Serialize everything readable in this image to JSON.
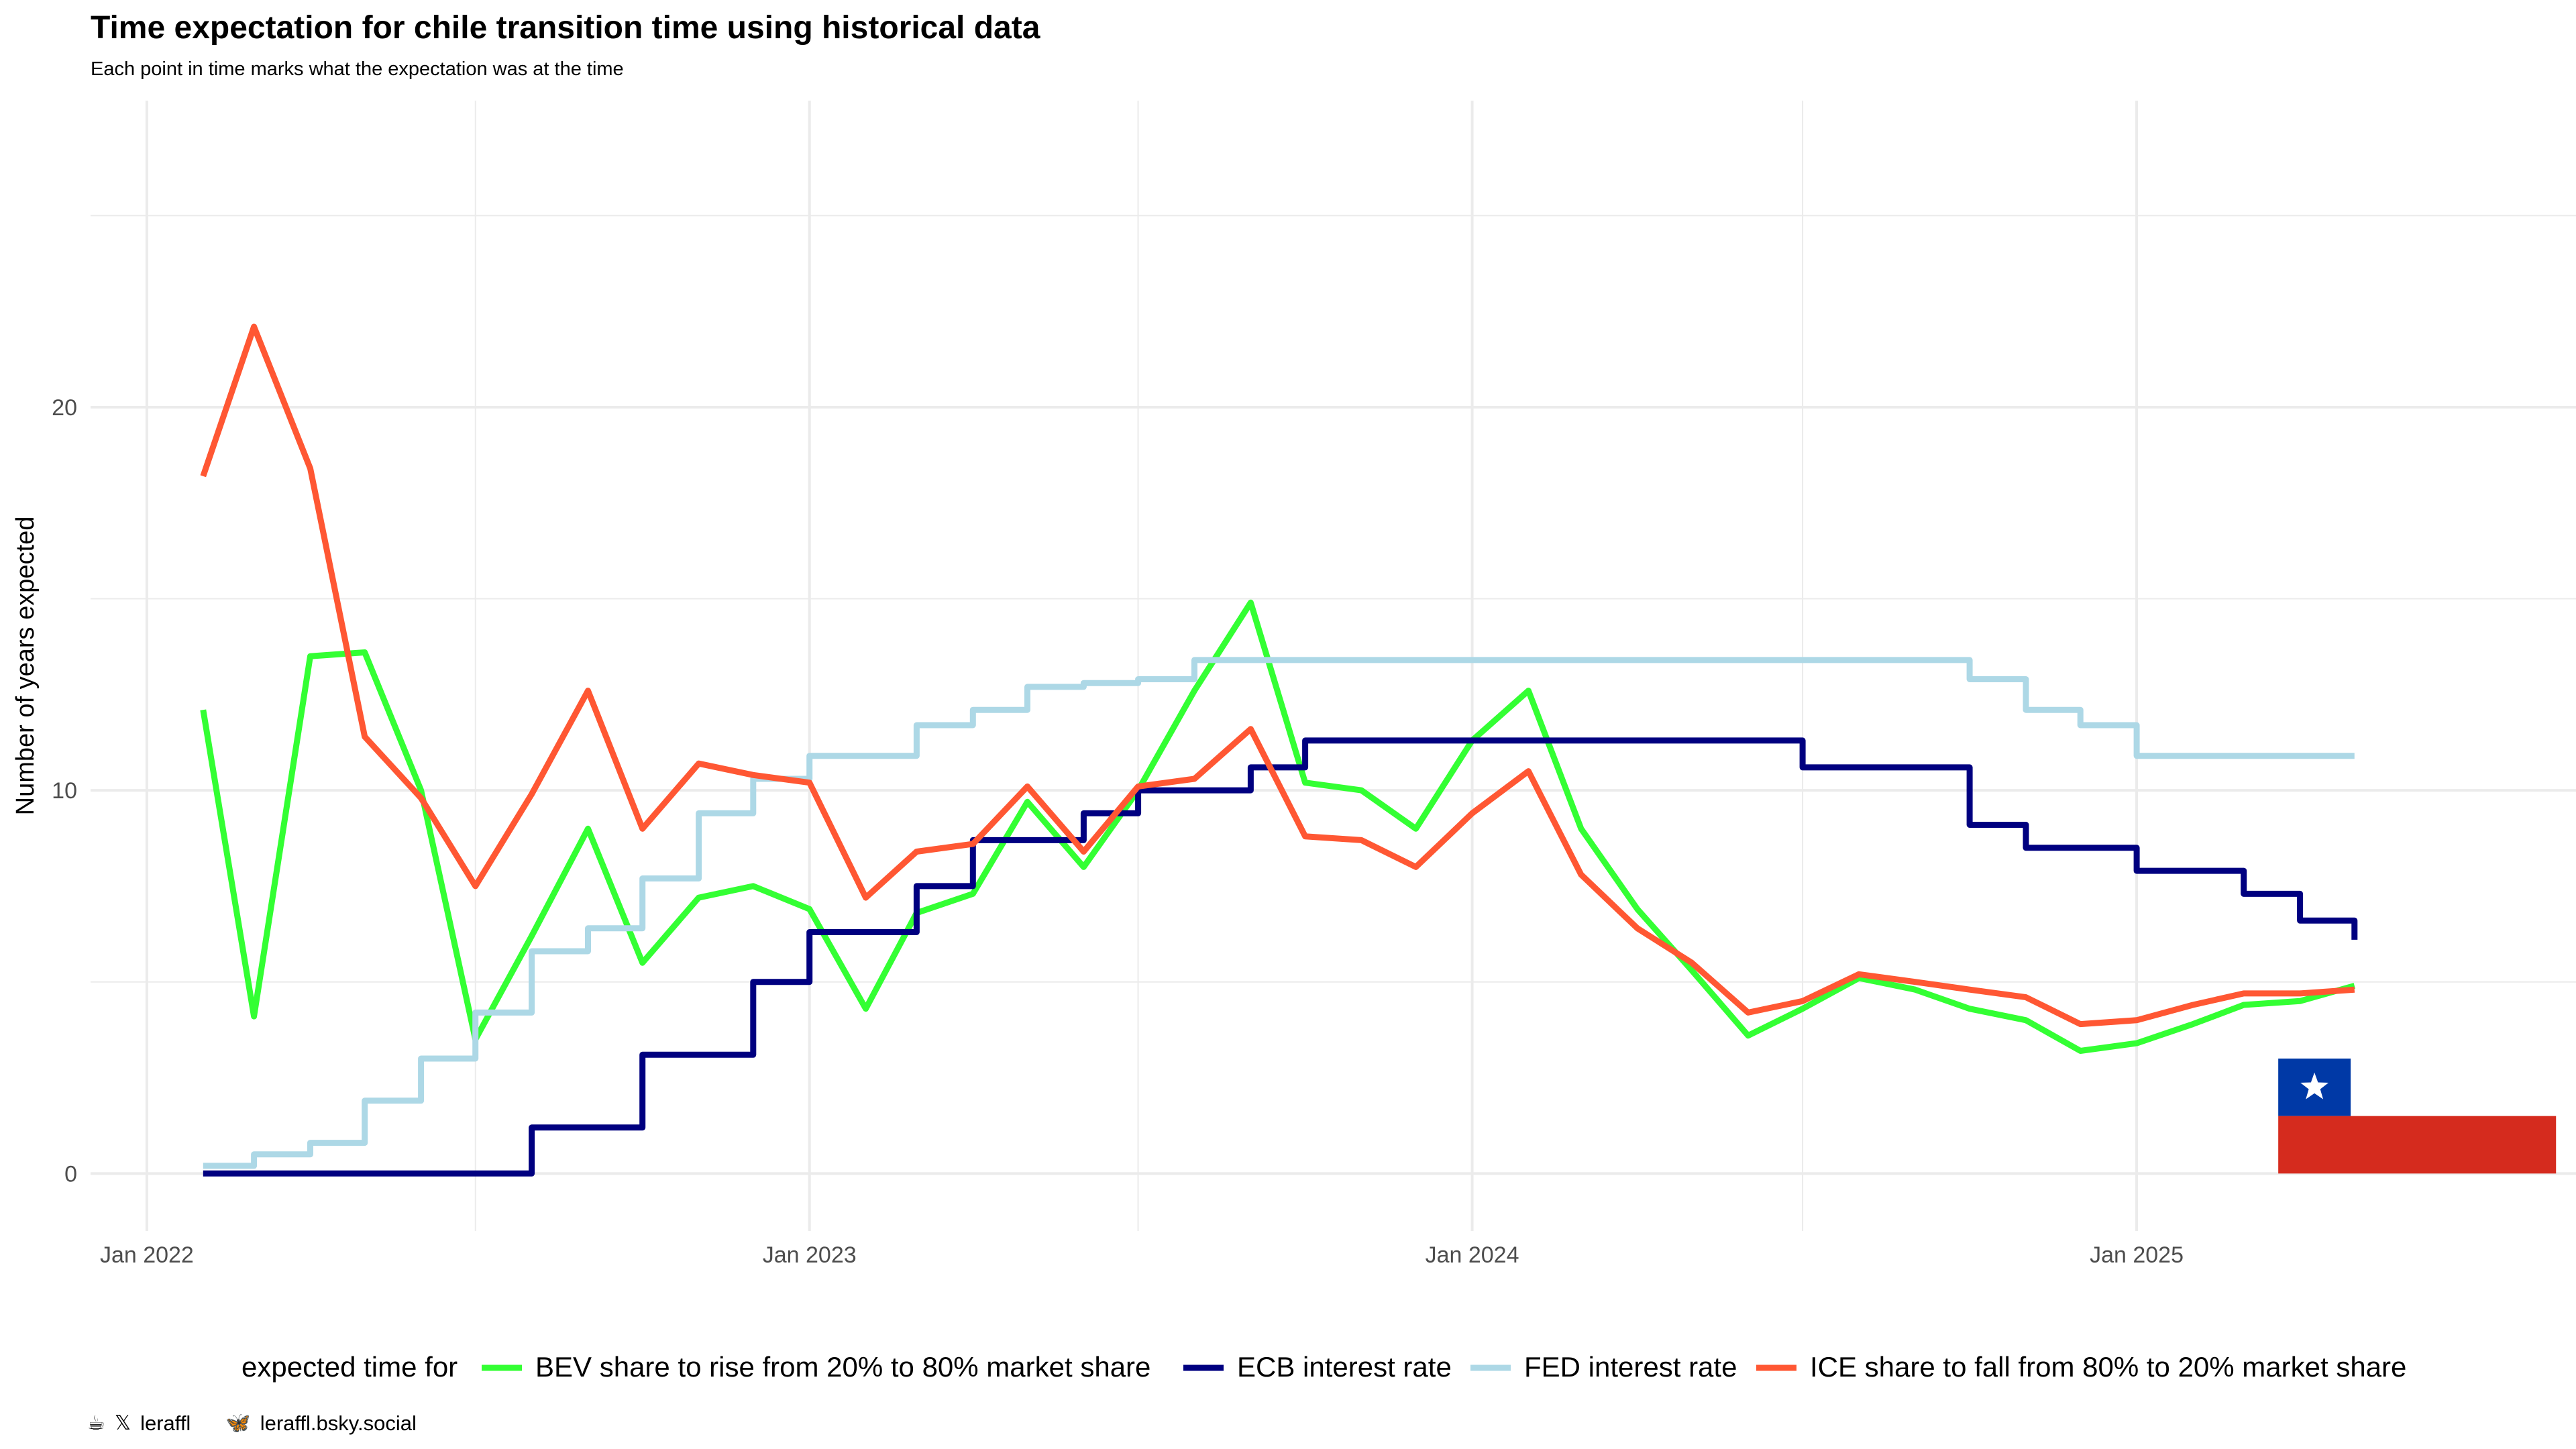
{
  "chart_data": {
    "type": "line",
    "title": "Time expectation for chile transition time using historical data",
    "subtitle": "Each point in time marks what the expectation was at the time",
    "ylabel": "Number of years expected",
    "xlabel": "",
    "x_ticks": [
      "Jan 2022",
      "Jan 2023",
      "Jan 2024",
      "Jan 2025"
    ],
    "y_ticks": [
      0,
      10,
      20
    ],
    "ylim": [
      -1.5,
      28
    ],
    "xlim": [
      "2021-12-01",
      "2025-08-31"
    ],
    "grid": true,
    "legend": {
      "title": "expected time for",
      "placement": "bottom"
    },
    "series": [
      {
        "name": "BEV share to rise from 20% to 80% market share",
        "color": "#33ff33",
        "step": false,
        "points": [
          [
            "2022-02-01",
            12.1
          ],
          [
            "2022-03-01",
            4.1
          ],
          [
            "2022-04-01",
            13.5
          ],
          [
            "2022-05-01",
            13.6
          ],
          [
            "2022-06-01",
            10.0
          ],
          [
            "2022-07-01",
            3.5
          ],
          [
            "2022-08-01",
            6.2
          ],
          [
            "2022-09-01",
            9.0
          ],
          [
            "2022-10-01",
            5.5
          ],
          [
            "2022-11-01",
            7.2
          ],
          [
            "2022-12-01",
            7.5
          ],
          [
            "2023-01-01",
            6.9
          ],
          [
            "2023-02-01",
            4.3
          ],
          [
            "2023-03-01",
            6.8
          ],
          [
            "2023-04-01",
            7.3
          ],
          [
            "2023-05-01",
            9.7
          ],
          [
            "2023-06-01",
            8.0
          ],
          [
            "2023-07-01",
            10.0
          ],
          [
            "2023-08-01",
            12.6
          ],
          [
            "2023-09-01",
            14.9
          ],
          [
            "2023-10-01",
            10.2
          ],
          [
            "2023-11-01",
            10.0
          ],
          [
            "2023-12-01",
            9.0
          ],
          [
            "2024-01-01",
            11.3
          ],
          [
            "2024-02-01",
            12.6
          ],
          [
            "2024-03-01",
            9.0
          ],
          [
            "2024-04-01",
            6.9
          ],
          [
            "2024-05-01",
            5.3
          ],
          [
            "2024-06-01",
            3.6
          ],
          [
            "2024-07-01",
            4.3
          ],
          [
            "2024-08-01",
            5.1
          ],
          [
            "2024-09-01",
            4.8
          ],
          [
            "2024-10-01",
            4.3
          ],
          [
            "2024-11-01",
            4.0
          ],
          [
            "2024-12-01",
            3.2
          ],
          [
            "2025-01-01",
            3.4
          ],
          [
            "2025-02-01",
            3.9
          ],
          [
            "2025-03-01",
            4.4
          ],
          [
            "2025-04-01",
            4.5
          ],
          [
            "2025-05-01",
            4.9
          ]
        ]
      },
      {
        "name": "ECB interest rate",
        "color": "#000080",
        "step": true,
        "points": [
          [
            "2022-02-01",
            0.0
          ],
          [
            "2022-03-01",
            0.0
          ],
          [
            "2022-04-01",
            0.0
          ],
          [
            "2022-05-01",
            0.0
          ],
          [
            "2022-06-01",
            0.0
          ],
          [
            "2022-07-01",
            0.0
          ],
          [
            "2022-08-01",
            1.2
          ],
          [
            "2022-09-01",
            1.2
          ],
          [
            "2022-10-01",
            3.1
          ],
          [
            "2022-11-01",
            3.1
          ],
          [
            "2022-12-01",
            5.0
          ],
          [
            "2023-01-01",
            6.3
          ],
          [
            "2023-02-01",
            6.3
          ],
          [
            "2023-03-01",
            7.5
          ],
          [
            "2023-04-01",
            8.7
          ],
          [
            "2023-05-01",
            8.7
          ],
          [
            "2023-06-01",
            9.4
          ],
          [
            "2023-07-01",
            10.0
          ],
          [
            "2023-08-01",
            10.0
          ],
          [
            "2023-09-01",
            10.6
          ],
          [
            "2023-10-01",
            11.3
          ],
          [
            "2023-11-01",
            11.3
          ],
          [
            "2023-12-01",
            11.3
          ],
          [
            "2024-01-01",
            11.3
          ],
          [
            "2024-02-01",
            11.3
          ],
          [
            "2024-03-01",
            11.3
          ],
          [
            "2024-04-01",
            11.3
          ],
          [
            "2024-05-01",
            11.3
          ],
          [
            "2024-06-01",
            11.3
          ],
          [
            "2024-07-01",
            10.6
          ],
          [
            "2024-08-01",
            10.6
          ],
          [
            "2024-09-01",
            10.6
          ],
          [
            "2024-10-01",
            9.1
          ],
          [
            "2024-11-01",
            8.5
          ],
          [
            "2024-12-01",
            8.5
          ],
          [
            "2025-01-01",
            7.9
          ],
          [
            "2025-02-01",
            7.9
          ],
          [
            "2025-03-01",
            7.3
          ],
          [
            "2025-04-01",
            6.6
          ],
          [
            "2025-05-01",
            6.1
          ]
        ]
      },
      {
        "name": "FED interest rate",
        "color": "#add8e6",
        "step": true,
        "points": [
          [
            "2022-02-01",
            0.2
          ],
          [
            "2022-03-01",
            0.5
          ],
          [
            "2022-04-01",
            0.8
          ],
          [
            "2022-05-01",
            1.9
          ],
          [
            "2022-06-01",
            3.0
          ],
          [
            "2022-07-01",
            4.2
          ],
          [
            "2022-08-01",
            5.8
          ],
          [
            "2022-09-01",
            6.4
          ],
          [
            "2022-10-01",
            7.7
          ],
          [
            "2022-11-01",
            9.4
          ],
          [
            "2022-12-01",
            10.3
          ],
          [
            "2023-01-01",
            10.9
          ],
          [
            "2023-02-01",
            10.9
          ],
          [
            "2023-03-01",
            11.7
          ],
          [
            "2023-04-01",
            12.1
          ],
          [
            "2023-05-01",
            12.7
          ],
          [
            "2023-06-01",
            12.8
          ],
          [
            "2023-07-01",
            12.9
          ],
          [
            "2023-08-01",
            13.4
          ],
          [
            "2023-09-01",
            13.4
          ],
          [
            "2023-10-01",
            13.4
          ],
          [
            "2023-11-01",
            13.4
          ],
          [
            "2023-12-01",
            13.4
          ],
          [
            "2024-01-01",
            13.4
          ],
          [
            "2024-02-01",
            13.4
          ],
          [
            "2024-03-01",
            13.4
          ],
          [
            "2024-04-01",
            13.4
          ],
          [
            "2024-05-01",
            13.4
          ],
          [
            "2024-06-01",
            13.4
          ],
          [
            "2024-07-01",
            13.4
          ],
          [
            "2024-08-01",
            13.4
          ],
          [
            "2024-09-01",
            13.4
          ],
          [
            "2024-10-01",
            12.9
          ],
          [
            "2024-11-01",
            12.1
          ],
          [
            "2024-12-01",
            11.7
          ],
          [
            "2025-01-01",
            10.9
          ],
          [
            "2025-02-01",
            10.9
          ],
          [
            "2025-03-01",
            10.9
          ],
          [
            "2025-04-01",
            10.9
          ],
          [
            "2025-05-01",
            10.9
          ]
        ]
      },
      {
        "name": "ICE share to fall from 80% to 20% market share",
        "color": "#ff5733",
        "step": false,
        "points": [
          [
            "2022-02-01",
            18.2
          ],
          [
            "2022-03-01",
            22.1
          ],
          [
            "2022-04-01",
            18.4
          ],
          [
            "2022-05-01",
            11.4
          ],
          [
            "2022-06-01",
            9.8
          ],
          [
            "2022-07-01",
            7.5
          ],
          [
            "2022-08-01",
            9.9
          ],
          [
            "2022-09-01",
            12.6
          ],
          [
            "2022-10-01",
            9.0
          ],
          [
            "2022-11-01",
            10.7
          ],
          [
            "2022-12-01",
            10.4
          ],
          [
            "2023-01-01",
            10.2
          ],
          [
            "2023-02-01",
            7.2
          ],
          [
            "2023-03-01",
            8.4
          ],
          [
            "2023-04-01",
            8.6
          ],
          [
            "2023-05-01",
            10.1
          ],
          [
            "2023-06-01",
            8.4
          ],
          [
            "2023-07-01",
            10.1
          ],
          [
            "2023-08-01",
            10.3
          ],
          [
            "2023-09-01",
            11.6
          ],
          [
            "2023-10-01",
            8.8
          ],
          [
            "2023-11-01",
            8.7
          ],
          [
            "2023-12-01",
            8.0
          ],
          [
            "2024-01-01",
            9.4
          ],
          [
            "2024-02-01",
            10.5
          ],
          [
            "2024-03-01",
            7.8
          ],
          [
            "2024-04-01",
            6.4
          ],
          [
            "2024-05-01",
            5.5
          ],
          [
            "2024-06-01",
            4.2
          ],
          [
            "2024-07-01",
            4.5
          ],
          [
            "2024-08-01",
            5.2
          ],
          [
            "2024-09-01",
            5.0
          ],
          [
            "2024-10-01",
            4.8
          ],
          [
            "2024-11-01",
            4.6
          ],
          [
            "2024-12-01",
            3.9
          ],
          [
            "2025-01-01",
            4.0
          ],
          [
            "2025-02-01",
            4.4
          ],
          [
            "2025-03-01",
            4.7
          ],
          [
            "2025-04-01",
            4.7
          ],
          [
            "2025-05-01",
            4.8
          ]
        ]
      }
    ]
  },
  "flag": {
    "colors": {
      "blue": "#0039a6",
      "white": "#ffffff",
      "red": "#d52b1e"
    },
    "icon": "chile-flag-icon"
  },
  "footer": {
    "handle_1": "leraffl",
    "handle_2": "leraffl.bsky.social",
    "icons": [
      "cup-icon",
      "x-logo-icon",
      "butterfly-icon"
    ]
  }
}
